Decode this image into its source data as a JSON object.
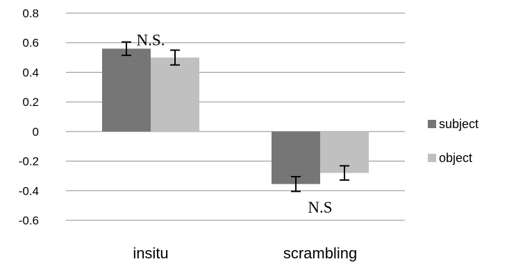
{
  "chart_data": {
    "type": "bar",
    "categories": [
      "insitu",
      "scrambling"
    ],
    "series": [
      {
        "name": "subject",
        "color": "#767676",
        "values": [
          0.56,
          -0.355
        ],
        "error": [
          0.045,
          0.05
        ]
      },
      {
        "name": "object",
        "color": "#c0c0c0",
        "values": [
          0.5,
          -0.28
        ],
        "error": [
          0.05,
          0.048
        ]
      }
    ],
    "ylim": [
      -0.6,
      0.8
    ],
    "yticks": [
      "0.8",
      "0.6",
      "0.4",
      "0.2",
      "0",
      "-0.2",
      "-0.4",
      "-0.6"
    ],
    "ytick_values": [
      0.8,
      0.6,
      0.4,
      0.2,
      0,
      -0.2,
      -0.4,
      -0.6
    ],
    "grid": true,
    "legend_position": "right",
    "annotations": [
      {
        "text": "N.S.",
        "category": 0,
        "y": 0.62
      },
      {
        "text": "N.S",
        "category": 1,
        "y": -0.51
      }
    ],
    "title": "",
    "xlabel": "",
    "ylabel": ""
  }
}
